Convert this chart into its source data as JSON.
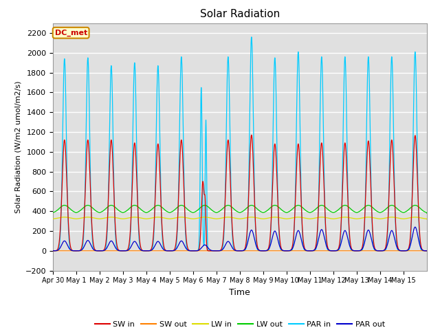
{
  "title": "Solar Radiation",
  "ylabel": "Solar Radiation (W/m2 umol/m2/s)",
  "xlabel": "Time",
  "annotation": "DC_met",
  "ylim": [
    -200,
    2300
  ],
  "yticks": [
    -200,
    0,
    200,
    400,
    600,
    800,
    1000,
    1200,
    1400,
    1600,
    1800,
    2000,
    2200
  ],
  "bg_color": "#e0e0e0",
  "x_tick_labels": [
    "Apr 30",
    "May 1",
    "May 2",
    "May 3",
    "May 4",
    "May 5",
    "May 6",
    "May 7",
    "May 8",
    "May 9",
    "May 10",
    "May 11",
    "May 12",
    "May 13",
    "May 14",
    "May 15"
  ],
  "num_days": 16,
  "points_per_day": 288,
  "sw_in_peaks": [
    1120,
    1120,
    1120,
    1090,
    1080,
    1120,
    700,
    1120,
    1170,
    1080,
    1080,
    1090,
    1090,
    1110,
    1120,
    1165
  ],
  "par_in_peaks": [
    1940,
    1950,
    1870,
    1900,
    1870,
    1960,
    1650,
    1960,
    2160,
    1950,
    2010,
    1960,
    1960,
    1960,
    1960,
    2010
  ],
  "par_out_peaks": [
    100,
    105,
    100,
    95,
    95,
    100,
    60,
    95,
    210,
    200,
    205,
    215,
    205,
    210,
    205,
    240
  ],
  "lw_in_base": 320,
  "lw_out_base": 380,
  "lw_out_day_bump": 80,
  "lw_in_day_bump": 20,
  "sw_in_color": "#dd0000",
  "sw_out_color": "#ff8000",
  "lw_in_color": "#dddd00",
  "lw_out_color": "#00cc00",
  "par_in_color": "#00ccff",
  "par_out_color": "#0000cc"
}
